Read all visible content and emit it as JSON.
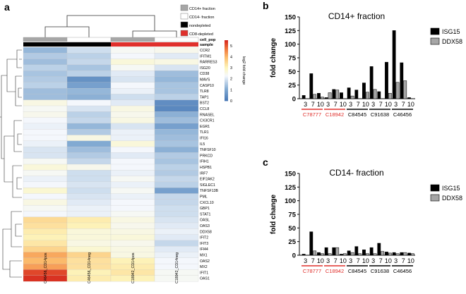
{
  "panel_labels": {
    "a": "a",
    "b": "b",
    "c": "c"
  },
  "legend": {
    "items": [
      {
        "label": "CD14+ fraction",
        "color": "#a6a6a6"
      },
      {
        "label": "CD14- fraction",
        "color": "#ffffff"
      },
      {
        "label": "nondepleted",
        "color": "#000000"
      },
      {
        "label": "CD8-depleted",
        "color": "#e0302c"
      }
    ]
  },
  "chart_data": [
    {
      "type": "heatmap",
      "title": "",
      "annotation_row_labels": [
        "cell_pop",
        "sample"
      ],
      "colorbar": {
        "label": "log2 fold change",
        "ticks": [
          0,
          1,
          2,
          3,
          4,
          5
        ],
        "range": [
          0,
          5.5
        ]
      },
      "columns": [
        "C46456_CD14pos",
        "C46456_CD14neg",
        "C18942_CD14pos",
        "C18942_CD14neg"
      ],
      "column_cell_pop": [
        "#a6a6a6",
        "#ffffff",
        "#a6a6a6",
        "#ffffff"
      ],
      "column_sample": [
        "#000000",
        "#000000",
        "#e0302c",
        "#e0302c"
      ],
      "rows": [
        "CCR2",
        "IFITM1",
        "RARRES3",
        "ISG20",
        "CD38",
        "MAVS",
        "CASP10",
        "TLR8",
        "TAP1",
        "BST2",
        "CCL8",
        "RNASEL",
        "CX3CR1",
        "EGR1",
        "TLR1",
        "IFI16",
        "IL5",
        "TNFSF10",
        "PRKCD",
        "IFIH1",
        "HSPB1",
        "IRF7",
        "EIF2AK2",
        "SIGLEC1",
        "TNFSF13B",
        "PML",
        "CXCL10",
        "GBP1",
        "STAT1",
        "OASL",
        "OAS3",
        "DDX58",
        "IFIT2",
        "IFIT3",
        "IFI44",
        "MX1",
        "OAS2",
        "MX2",
        "IFIT1",
        "OAS1"
      ],
      "values": [
        [
          1.3,
          1.9,
          2.4,
          2.5
        ],
        [
          1.6,
          1.7,
          2.3,
          2.1
        ],
        [
          1.4,
          1.8,
          2.7,
          2.6
        ],
        [
          1.7,
          1.5,
          2.4,
          2.0
        ],
        [
          1.5,
          1.7,
          2.1,
          1.4
        ],
        [
          1.6,
          0.6,
          2.0,
          1.3
        ],
        [
          1.7,
          0.9,
          2.3,
          1.5
        ],
        [
          1.4,
          1.3,
          2.2,
          1.5
        ],
        [
          1.4,
          1.2,
          1.9,
          1.7
        ],
        [
          2.6,
          2.3,
          2.1,
          0.5
        ],
        [
          2.4,
          2.0,
          2.6,
          0.4
        ],
        [
          2.5,
          1.7,
          2.5,
          1.2
        ],
        [
          2.3,
          1.8,
          2.6,
          1.4
        ],
        [
          2.2,
          1.3,
          2.0,
          0.9
        ],
        [
          2.3,
          1.6,
          2.2,
          1.3
        ],
        [
          2.3,
          2.6,
          2.2,
          1.4
        ],
        [
          2.2,
          1.1,
          2.7,
          1.5
        ],
        [
          2.0,
          1.4,
          2.3,
          1.2
        ],
        [
          2.0,
          1.6,
          2.1,
          1.6
        ],
        [
          2.4,
          1.8,
          2.3,
          1.5
        ],
        [
          2.7,
          2.5,
          2.3,
          1.7
        ],
        [
          2.4,
          1.9,
          2.2,
          1.6
        ],
        [
          2.2,
          1.9,
          2.4,
          1.8
        ],
        [
          2.3,
          2.0,
          2.2,
          1.7
        ],
        [
          2.8,
          1.9,
          2.4,
          0.9
        ],
        [
          2.3,
          2.0,
          2.2,
          1.8
        ],
        [
          2.6,
          2.1,
          2.3,
          1.8
        ],
        [
          2.4,
          2.2,
          2.3,
          1.9
        ],
        [
          2.3,
          2.2,
          2.4,
          1.9
        ],
        [
          3.5,
          3.2,
          2.6,
          2.0
        ],
        [
          3.4,
          3.1,
          2.5,
          2.1
        ],
        [
          3.2,
          2.7,
          2.6,
          2.2
        ],
        [
          3.1,
          2.7,
          2.7,
          2.1
        ],
        [
          3.3,
          2.6,
          2.5,
          1.8
        ],
        [
          3.6,
          2.8,
          2.6,
          2.1
        ],
        [
          4.2,
          3.6,
          2.6,
          2.2
        ],
        [
          4.0,
          3.4,
          3.1,
          2.3
        ],
        [
          4.3,
          3.4,
          3.2,
          2.3
        ],
        [
          5.2,
          3.1,
          3.3,
          2.4
        ],
        [
          5.4,
          3.2,
          3.1,
          2.4
        ]
      ]
    },
    {
      "type": "bar",
      "title": "CD14+ fraction",
      "ylabel": "fold change",
      "xlabel": "",
      "ylim": [
        0,
        150
      ],
      "yticks": [
        0,
        25,
        50,
        75,
        100,
        125,
        150
      ],
      "categories": [
        "3",
        "7",
        "10",
        "3",
        "7",
        "10",
        "3",
        "7",
        "10",
        "3",
        "7",
        "10",
        "3",
        "7",
        "10"
      ],
      "groups": [
        {
          "label": "C78777",
          "color": "#e0302c"
        },
        {
          "label": "C18942",
          "color": "#e0302c"
        },
        {
          "label": "C84545",
          "color": "#000000"
        },
        {
          "label": "C91638",
          "color": "#000000"
        },
        {
          "label": "C46456",
          "color": "#000000"
        }
      ],
      "series": [
        {
          "name": "ISG15",
          "color": "#000000",
          "values": [
            6,
            46,
            10,
            2,
            17,
            11,
            20,
            16,
            29,
            59,
            13,
            67,
            125,
            66,
            2
          ]
        },
        {
          "name": "DDX58",
          "color": "#a6a6a6",
          "values": [
            0,
            8,
            3,
            11,
            16,
            0,
            5,
            0,
            12,
            17,
            0,
            10,
            30,
            33,
            0
          ]
        }
      ]
    },
    {
      "type": "bar",
      "title": "CD14- fraction",
      "ylabel": "fold change",
      "xlabel": "",
      "ylim": [
        0,
        150
      ],
      "yticks": [
        0,
        25,
        50,
        75,
        100,
        125,
        150
      ],
      "categories": [
        "3",
        "7",
        "10",
        "3",
        "7",
        "10",
        "3",
        "7",
        "10",
        "3",
        "7",
        "10",
        "3",
        "7",
        "10"
      ],
      "groups": [
        {
          "label": "C78777",
          "color": "#e0302c"
        },
        {
          "label": "C18942",
          "color": "#e0302c"
        },
        {
          "label": "C84545",
          "color": "#000000"
        },
        {
          "label": "C91638",
          "color": "#000000"
        },
        {
          "label": "C46456",
          "color": "#000000"
        }
      ],
      "series": [
        {
          "name": "ISG15",
          "color": "#000000",
          "values": [
            2,
            43,
            5,
            14,
            14,
            2,
            8,
            16,
            10,
            14,
            22,
            6,
            5,
            5,
            4
          ]
        },
        {
          "name": "DDX58",
          "color": "#a6a6a6",
          "values": [
            0,
            8,
            3,
            3,
            14,
            3,
            5,
            3,
            3,
            3,
            7,
            4,
            3,
            5,
            3
          ]
        }
      ]
    }
  ]
}
